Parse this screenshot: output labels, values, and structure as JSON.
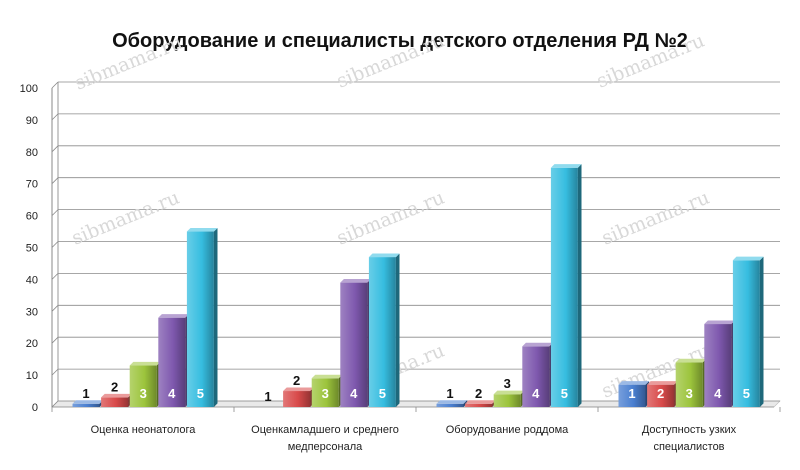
{
  "chart_data": {
    "type": "bar",
    "title": "Оборудование и специалисты детского отделения РД №2",
    "xlabel": "",
    "ylabel": "",
    "ylim": [
      0,
      100
    ],
    "yticks": [
      0,
      10,
      20,
      30,
      40,
      50,
      60,
      70,
      80,
      90,
      100
    ],
    "grid": true,
    "legend": "none",
    "categories": [
      [
        "Оценка неонатолога"
      ],
      [
        "Оценкамладшего и среднего",
        "медперсонала"
      ],
      [
        "Оборудование роддома"
      ],
      [
        "Доступность узких",
        "специалистов"
      ]
    ],
    "series": [
      {
        "label": "1",
        "color": "#4a7fd0",
        "values": [
          1,
          0,
          1,
          7
        ]
      },
      {
        "label": "2",
        "color": "#d84a4a",
        "values": [
          3,
          5,
          1,
          7
        ]
      },
      {
        "label": "3",
        "color": "#9cc43c",
        "values": [
          13,
          9,
          4,
          14
        ]
      },
      {
        "label": "4",
        "color": "#7e58ae",
        "values": [
          28,
          39,
          19,
          26
        ]
      },
      {
        "label": "5",
        "color": "#36bde0",
        "values": [
          55,
          47,
          75,
          46
        ]
      }
    ],
    "watermark": "sibmama.ru"
  }
}
